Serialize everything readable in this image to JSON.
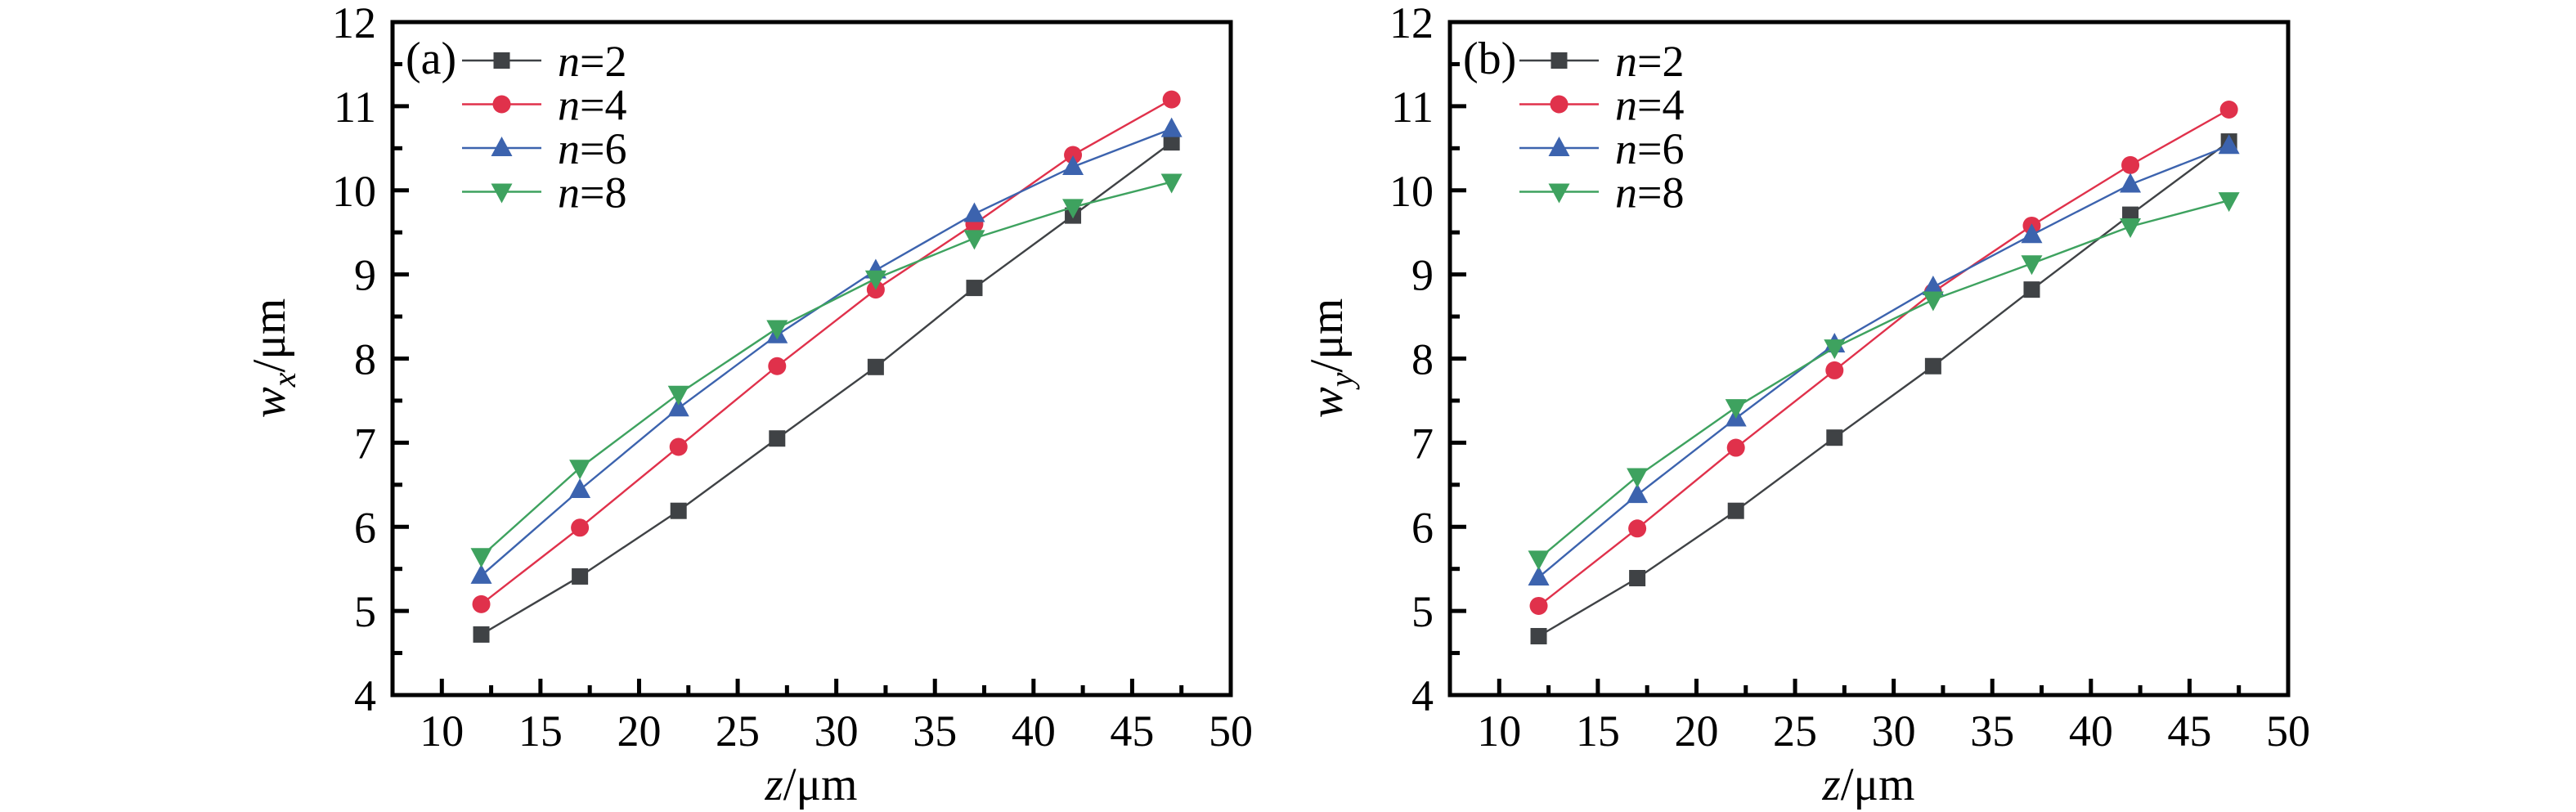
{
  "page": {
    "background": "#ffffff",
    "axis_color": "#000000"
  },
  "chart_data": [
    {
      "type": "line",
      "panel_label": "(a)",
      "xlabel_var": "z",
      "xlabel_unit": "/μm",
      "ylabel_var": "w",
      "ylabel_sub": "x",
      "ylabel_unit": "/μm",
      "xlim": [
        7.5,
        50
      ],
      "ylim": [
        4,
        12
      ],
      "x_major_ticks": [
        10,
        15,
        20,
        25,
        30,
        35,
        40,
        45,
        50
      ],
      "x_minor_ticks": [
        12.5,
        17.5,
        22.5,
        27.5,
        32.5,
        37.5,
        42.5,
        47.5
      ],
      "y_major_ticks": [
        4,
        5,
        6,
        7,
        8,
        9,
        10,
        11,
        12
      ],
      "y_minor_ticks": [
        4.5,
        5.5,
        6.5,
        7.5,
        8.5,
        9.5,
        10.5,
        11.5
      ],
      "grid": false,
      "legend_position": "top-left",
      "x": [
        12,
        17,
        22,
        27,
        32,
        37,
        42,
        47
      ],
      "series": [
        {
          "name_var": "n",
          "name_rest": "=2",
          "marker": "square",
          "color": "#3f4245",
          "values": [
            4.72,
            5.41,
            6.19,
            7.05,
            7.9,
            8.84,
            9.7,
            10.57
          ]
        },
        {
          "name_var": "n",
          "name_rest": "=4",
          "marker": "circle",
          "color": "#e0314b",
          "values": [
            5.08,
            5.99,
            6.95,
            7.91,
            8.82,
            9.6,
            10.42,
            11.08
          ]
        },
        {
          "name_var": "n",
          "name_rest": "=6",
          "marker": "triangle-up",
          "color": "#3c63ae",
          "values": [
            5.42,
            6.44,
            7.41,
            8.28,
            9.05,
            9.72,
            10.28,
            10.73
          ]
        },
        {
          "name_var": "n",
          "name_rest": "=8",
          "marker": "triangle-down",
          "color": "#3ea25f",
          "values": [
            5.65,
            6.7,
            7.58,
            8.36,
            8.95,
            9.43,
            9.8,
            10.1
          ]
        }
      ]
    },
    {
      "type": "line",
      "panel_label": "(b)",
      "xlabel_var": "z",
      "xlabel_unit": "/μm",
      "ylabel_var": "w",
      "ylabel_sub": "y",
      "ylabel_unit": "/μm",
      "xlim": [
        7.5,
        50
      ],
      "ylim": [
        4,
        12
      ],
      "x_major_ticks": [
        10,
        15,
        20,
        25,
        30,
        35,
        40,
        45,
        50
      ],
      "x_minor_ticks": [
        12.5,
        17.5,
        22.5,
        27.5,
        32.5,
        37.5,
        42.5,
        47.5
      ],
      "y_major_ticks": [
        4,
        5,
        6,
        7,
        8,
        9,
        10,
        11,
        12
      ],
      "y_minor_ticks": [
        4.5,
        5.5,
        6.5,
        7.5,
        8.5,
        9.5,
        10.5,
        11.5
      ],
      "grid": false,
      "legend_position": "top-left",
      "x": [
        12,
        17,
        22,
        27,
        32,
        37,
        42,
        47
      ],
      "series": [
        {
          "name_var": "n",
          "name_rest": "=2",
          "marker": "square",
          "color": "#3f4245",
          "values": [
            4.7,
            5.39,
            6.19,
            7.06,
            7.91,
            8.82,
            9.71,
            10.58
          ]
        },
        {
          "name_var": "n",
          "name_rest": "=4",
          "marker": "circle",
          "color": "#e0314b",
          "values": [
            5.06,
            5.98,
            6.94,
            7.86,
            8.79,
            9.58,
            10.3,
            10.96
          ]
        },
        {
          "name_var": "n",
          "name_rest": "=6",
          "marker": "triangle-up",
          "color": "#3c63ae",
          "values": [
            5.4,
            6.38,
            7.29,
            8.17,
            8.85,
            9.47,
            10.07,
            10.53
          ]
        },
        {
          "name_var": "n",
          "name_rest": "=8",
          "marker": "triangle-down",
          "color": "#3ea25f",
          "values": [
            5.62,
            6.6,
            7.42,
            8.13,
            8.7,
            9.13,
            9.57,
            9.88
          ]
        }
      ]
    }
  ]
}
